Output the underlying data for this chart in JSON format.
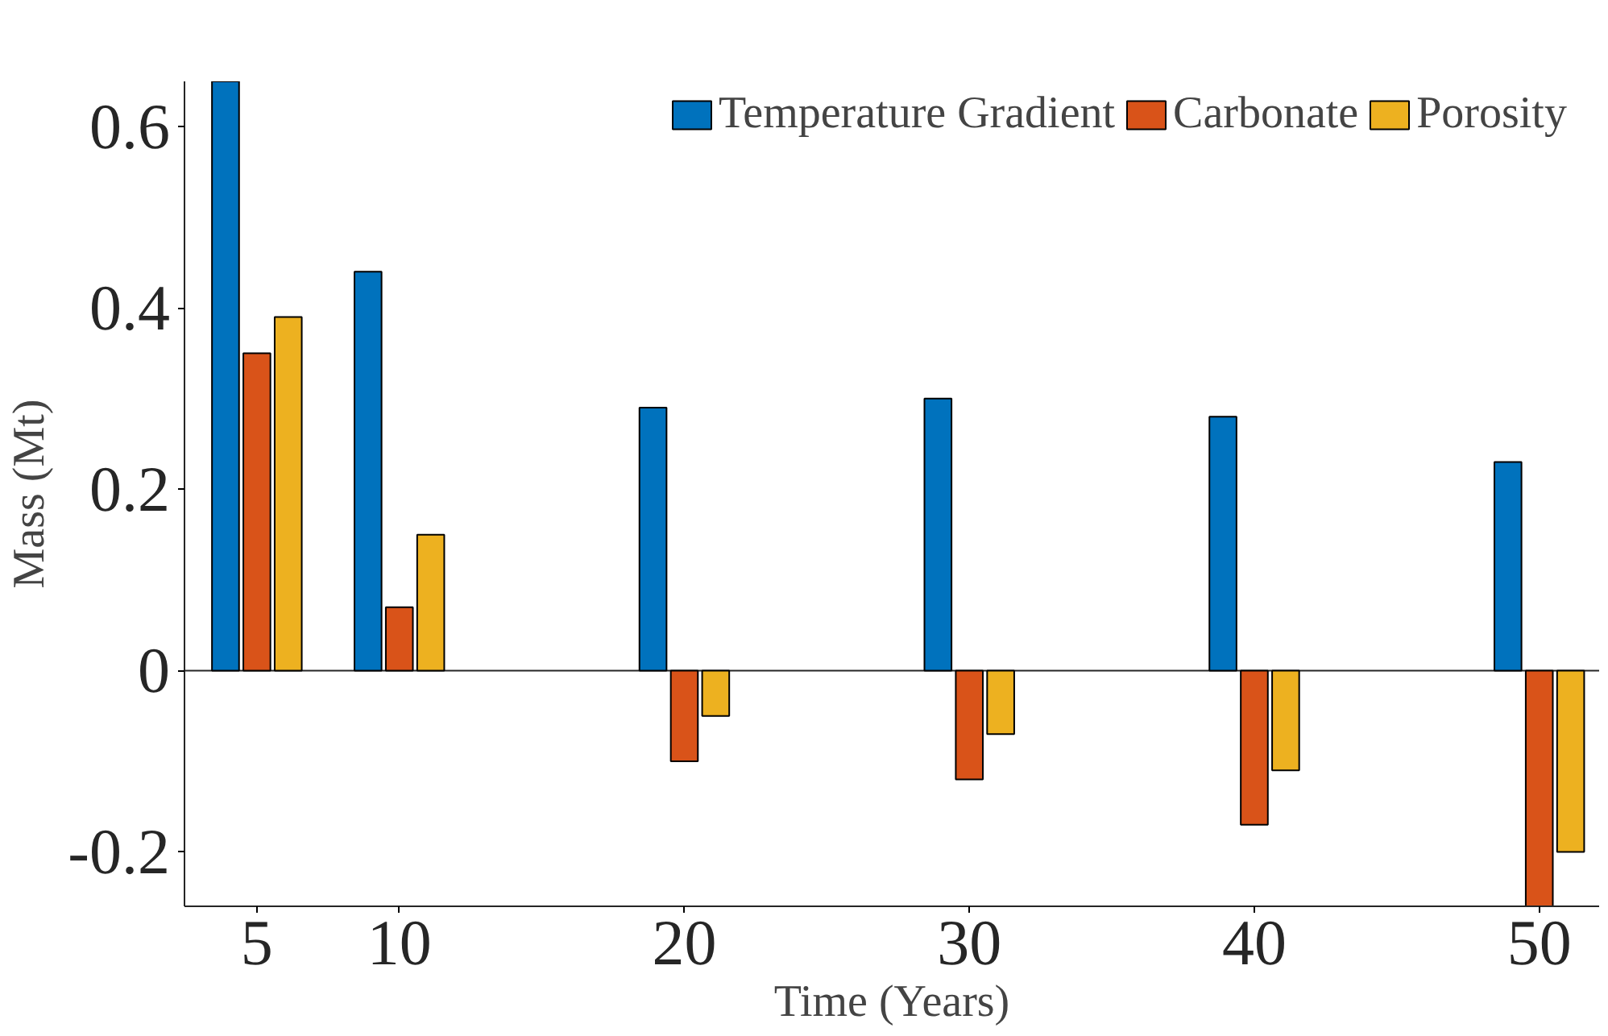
{
  "chart_data": {
    "type": "bar",
    "xlabel": "Time (Years)",
    "ylabel": "Mass (Mt)",
    "x": [
      5,
      10,
      20,
      30,
      40,
      50
    ],
    "series": [
      {
        "name": "Temperature Gradient",
        "color": "#0072bd",
        "values": [
          0.65,
          0.44,
          0.29,
          0.3,
          0.28,
          0.23
        ]
      },
      {
        "name": "Carbonate",
        "color": "#d95319",
        "values": [
          0.35,
          0.07,
          -0.1,
          -0.12,
          -0.17,
          -0.26
        ]
      },
      {
        "name": "Porosity",
        "color": "#edb120",
        "values": [
          0.39,
          0.15,
          -0.05,
          -0.07,
          -0.11,
          -0.2
        ]
      }
    ],
    "xlim": [
      2.46,
      52.1
    ],
    "ylim": [
      -0.26,
      0.65
    ],
    "xticks": [
      5,
      10,
      20,
      30,
      40,
      50
    ],
    "yticks": [
      {
        "value": -0.2,
        "label": "-0.2"
      },
      {
        "value": 0,
        "label": "0"
      },
      {
        "value": 0.2,
        "label": "0.2"
      },
      {
        "value": 0.4,
        "label": "0.4"
      },
      {
        "value": 0.6,
        "label": "0.6"
      }
    ],
    "ref_lines": [
      {
        "axis": "y",
        "value": 0,
        "color": "#262626"
      }
    ],
    "grid": false,
    "legend": "top"
  }
}
